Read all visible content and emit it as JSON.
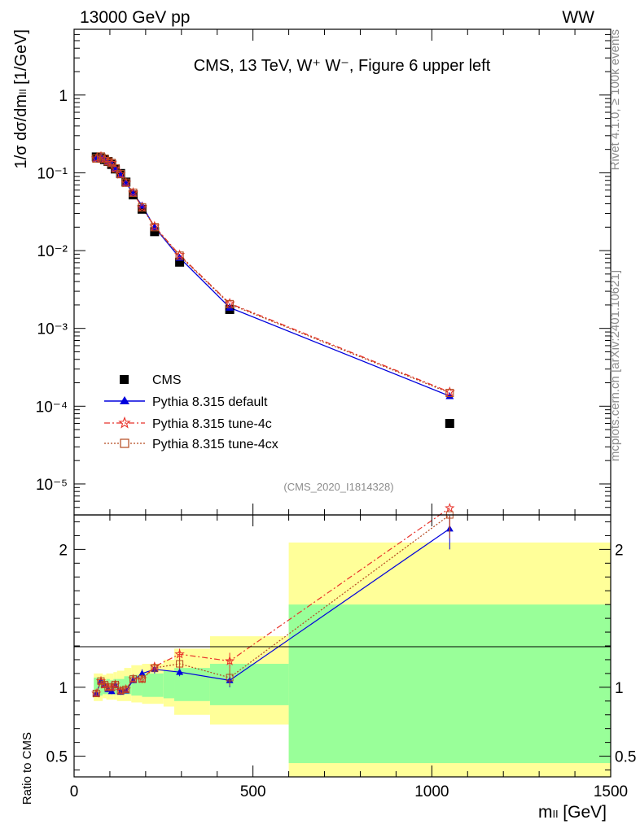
{
  "header": {
    "left": "13000 GeV pp",
    "right": "WW"
  },
  "side_labels": {
    "rivet": "Rivet 4.1.0, ≥ 100k events",
    "mcplots": "mcplots.cern.ch [arXiv:2401.10621]"
  },
  "colors": {
    "cms": "#000000",
    "default": "#0000dd",
    "tune4c": "#e8322a",
    "tune4cx": "#b5491f",
    "band_inner": "#99ff99",
    "band_outer": "#ffff99"
  },
  "chart_data": [
    {
      "type": "line",
      "title": "CMS, 13 TeV, W⁺ W⁻, Figure 6 upper left",
      "watermark": "(CMS_2020_I1814328)",
      "ylabel": "1/σ dσ/dmₗₗ [1/GeV]",
      "yscale": "log",
      "xlim": [
        0,
        1500
      ],
      "ylim": [
        4e-06,
        7
      ],
      "y_ticks": [
        {
          "value": 1,
          "label": "1"
        },
        {
          "value": 0.1,
          "label": "10⁻¹"
        },
        {
          "value": 0.01,
          "label": "10⁻²"
        },
        {
          "value": 0.001,
          "label": "10⁻³"
        },
        {
          "value": 0.0001,
          "label": "10⁻⁴"
        },
        {
          "value": 1e-05,
          "label": "10⁻⁵"
        }
      ],
      "x": [
        62,
        75,
        85,
        95,
        105,
        115,
        130,
        145,
        165,
        190,
        225,
        295,
        435,
        1050
      ],
      "series": [
        {
          "name": "CMS",
          "marker": "square",
          "values": [
            0.16,
            0.155,
            0.148,
            0.14,
            0.128,
            0.112,
            0.098,
            0.076,
            0.052,
            0.034,
            0.0175,
            0.0071,
            0.00175,
            6e-05
          ]
        },
        {
          "name": "Pythia 8.315 default",
          "marker": "triangle",
          "values": [
            0.153,
            0.162,
            0.152,
            0.138,
            0.132,
            0.113,
            0.095,
            0.074,
            0.0545,
            0.038,
            0.02,
            0.0081,
            0.00185,
            0.000135
          ]
        },
        {
          "name": "Pythia 8.315 tune-4c",
          "marker": "star",
          "values": [
            0.153,
            0.162,
            0.152,
            0.14,
            0.134,
            0.114,
            0.096,
            0.0745,
            0.0555,
            0.036,
            0.0205,
            0.0088,
            0.0021,
            0.000152
          ]
        },
        {
          "name": "Pythia 8.315 tune-4cx",
          "marker": "open-square",
          "values": [
            0.153,
            0.162,
            0.152,
            0.14,
            0.134,
            0.114,
            0.096,
            0.0745,
            0.0555,
            0.036,
            0.02,
            0.0086,
            0.00205,
            0.000148
          ]
        }
      ],
      "legend": [
        "CMS",
        "Pythia 8.315 default",
        "Pythia 8.315 tune-4c",
        "Pythia 8.315 tune-4cx"
      ],
      "legend_position": "lower-left"
    },
    {
      "type": "line",
      "ylabel": "Ratio to CMS",
      "xlabel": "mₗₗ [GeV]",
      "xlim": [
        0,
        1500
      ],
      "ylim": [
        0.35,
        2.25
      ],
      "x_ticks": [
        0,
        500,
        1000,
        1500
      ],
      "y_ticks": [
        {
          "value": 0.5,
          "label": "0.5"
        },
        {
          "value": 1,
          "label": "1"
        },
        {
          "value": 2,
          "label": "2"
        }
      ],
      "x": [
        62,
        75,
        85,
        95,
        105,
        115,
        130,
        145,
        165,
        190,
        225,
        295,
        435,
        1050
      ],
      "bands": [
        {
          "x0": 55,
          "x1": 70,
          "inner": [
            0.93,
            1.07
          ],
          "outer": [
            0.9,
            1.1
          ]
        },
        {
          "x0": 70,
          "x1": 80,
          "inner": [
            0.94,
            1.06
          ],
          "outer": [
            0.9,
            1.1
          ]
        },
        {
          "x0": 80,
          "x1": 90,
          "inner": [
            0.95,
            1.05
          ],
          "outer": [
            0.92,
            1.09
          ]
        },
        {
          "x0": 90,
          "x1": 100,
          "inner": [
            0.95,
            1.06
          ],
          "outer": [
            0.91,
            1.1
          ]
        },
        {
          "x0": 100,
          "x1": 110,
          "inner": [
            0.95,
            1.05
          ],
          "outer": [
            0.91,
            1.1
          ]
        },
        {
          "x0": 110,
          "x1": 120,
          "inner": [
            0.95,
            1.06
          ],
          "outer": [
            0.91,
            1.11
          ]
        },
        {
          "x0": 120,
          "x1": 140,
          "inner": [
            0.95,
            1.06
          ],
          "outer": [
            0.9,
            1.12
          ]
        },
        {
          "x0": 140,
          "x1": 160,
          "inner": [
            0.95,
            1.08
          ],
          "outer": [
            0.9,
            1.14
          ]
        },
        {
          "x0": 160,
          "x1": 190,
          "inner": [
            0.94,
            1.09
          ],
          "outer": [
            0.89,
            1.16
          ]
        },
        {
          "x0": 190,
          "x1": 250,
          "inner": [
            0.93,
            1.1
          ],
          "outer": [
            0.88,
            1.17
          ]
        },
        {
          "x0": 250,
          "x1": 280,
          "inner": [
            0.92,
            1.12
          ],
          "outer": [
            0.86,
            1.2
          ]
        },
        {
          "x0": 280,
          "x1": 380,
          "inner": [
            0.9,
            1.14
          ],
          "outer": [
            0.8,
            1.28
          ]
        },
        {
          "x0": 380,
          "x1": 600,
          "inner": [
            0.87,
            1.17
          ],
          "outer": [
            0.73,
            1.37
          ]
        },
        {
          "x0": 600,
          "x1": 1500,
          "inner": [
            0.45,
            1.6
          ],
          "outer": [
            0.35,
            2.05
          ]
        }
      ],
      "series": [
        {
          "name": "Pythia 8.315 default",
          "values": [
            0.955,
            1.045,
            1.02,
            0.985,
            0.97,
            1.015,
            0.965,
            0.975,
            1.05,
            1.1,
            1.13,
            1.11,
            1.05,
            2.15
          ],
          "errors": [
            0.02,
            0.02,
            0.02,
            0.02,
            0.02,
            0.02,
            0.02,
            0.02,
            0.02,
            0.03,
            0.03,
            0.03,
            0.05,
            0.15
          ]
        },
        {
          "name": "Pythia 8.315 tune-4c",
          "values": [
            0.955,
            1.045,
            1.02,
            1.0,
            1.0,
            1.02,
            0.975,
            0.985,
            1.06,
            1.06,
            1.15,
            1.24,
            1.19,
            2.3
          ],
          "errors": [
            0.02,
            0.02,
            0.02,
            0.02,
            0.02,
            0.02,
            0.02,
            0.02,
            0.02,
            0.03,
            0.03,
            0.04,
            0.06,
            0.18
          ]
        },
        {
          "name": "Pythia 8.315 tune-4cx",
          "values": [
            0.955,
            1.045,
            1.02,
            1.0,
            1.0,
            1.02,
            0.975,
            0.985,
            1.06,
            1.06,
            1.14,
            1.17,
            1.07,
            2.25
          ],
          "errors": [
            0.02,
            0.02,
            0.02,
            0.02,
            0.02,
            0.02,
            0.02,
            0.02,
            0.02,
            0.03,
            0.03,
            0.04,
            0.06,
            0.17
          ]
        }
      ]
    }
  ]
}
